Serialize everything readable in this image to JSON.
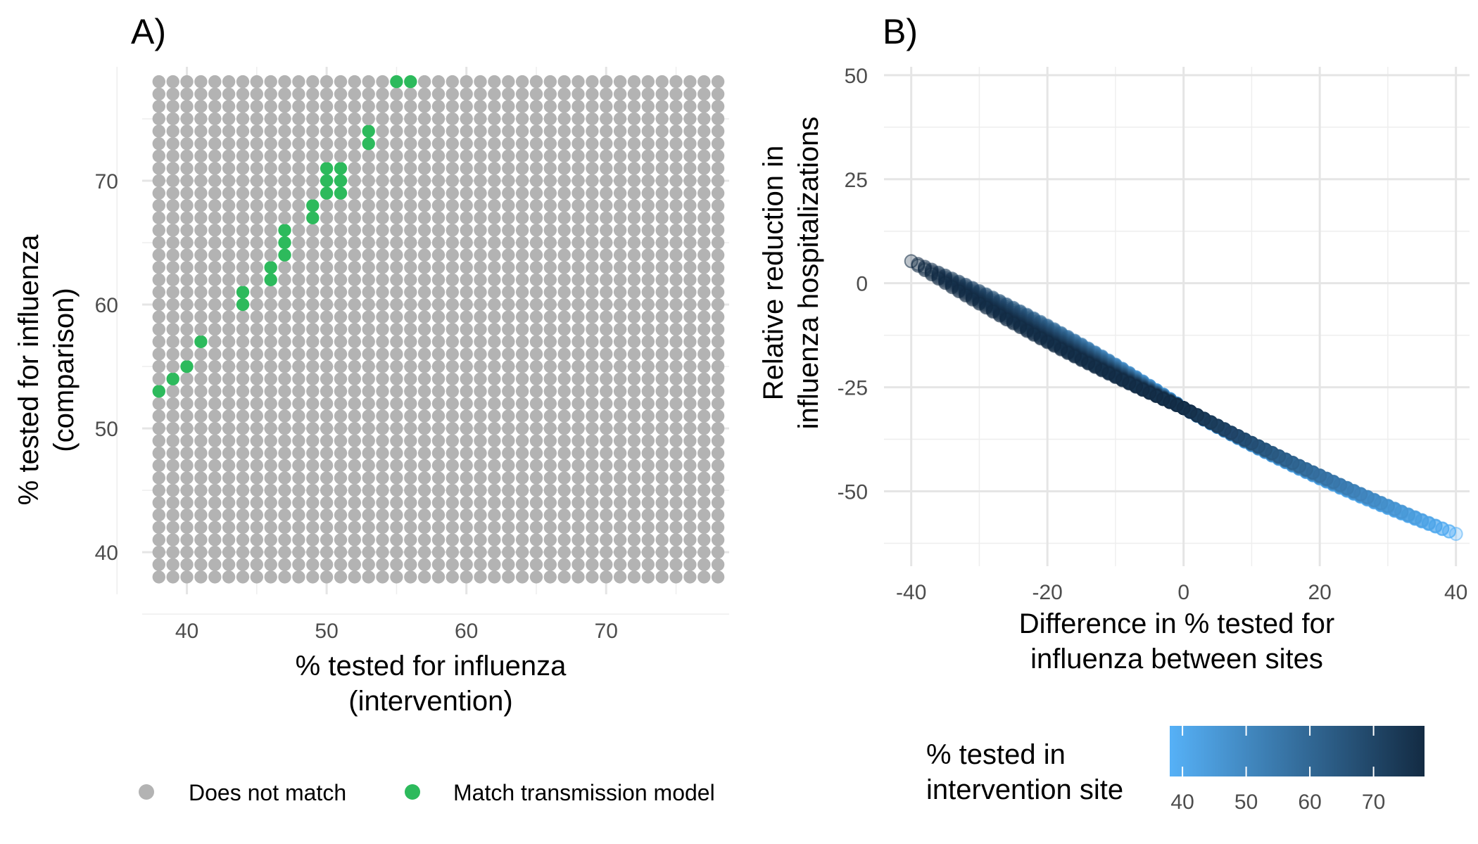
{
  "chart_data": [
    {
      "panel": "A)",
      "type": "scatter",
      "xlabel": [
        "% tested for influenza",
        "(intervention)"
      ],
      "ylabel": [
        "% tested for influenza",
        "(comparison)"
      ],
      "xlim": [
        36.8,
        78.8
      ],
      "ylim": [
        36.6,
        79.2
      ],
      "x_ticks": [
        40,
        50,
        60,
        70
      ],
      "y_ticks": [
        40,
        50,
        60,
        70
      ],
      "grid": true,
      "grid_range": {
        "x": [
          38,
          78
        ],
        "y": [
          38,
          78
        ]
      },
      "legend": {
        "position": "bottom",
        "entries": [
          {
            "label": "Does not match",
            "color": "#b3b3b3"
          },
          {
            "label": "Match transmission model",
            "color": "#2dba5c"
          }
        ]
      },
      "background_color": "#b3b3b3",
      "match_color": "#2dba5c",
      "match_points": [
        [
          38,
          53
        ],
        [
          39,
          54
        ],
        [
          40,
          55
        ],
        [
          41,
          57
        ],
        [
          44,
          60
        ],
        [
          44,
          61
        ],
        [
          46,
          62
        ],
        [
          46,
          63
        ],
        [
          47,
          64
        ],
        [
          47,
          65
        ],
        [
          47,
          66
        ],
        [
          49,
          67
        ],
        [
          49,
          68
        ],
        [
          50,
          69
        ],
        [
          50,
          70
        ],
        [
          50,
          71
        ],
        [
          51,
          69
        ],
        [
          51,
          70
        ],
        [
          51,
          71
        ],
        [
          53,
          73
        ],
        [
          53,
          74
        ],
        [
          55,
          78
        ],
        [
          56,
          78
        ]
      ],
      "nonmatch_highlight": [
        [
          54,
          77
        ]
      ]
    },
    {
      "panel": "B)",
      "type": "scatter",
      "xlabel": [
        "Difference in % tested for",
        "influenza between sites"
      ],
      "ylabel": [
        "Relative reduction in",
        "influenza hospitalizations"
      ],
      "xlim": [
        -44,
        42
      ],
      "ylim": [
        -68,
        52
      ],
      "x_ticks": [
        -40,
        -20,
        0,
        20,
        40
      ],
      "y_ticks": [
        50,
        25,
        0,
        -25,
        -50
      ],
      "y_tick_labels": [
        "50",
        "25",
        "0",
        "-25",
        "-50"
      ],
      "x_tick_labels": [
        "-40",
        "-20",
        "0",
        "20",
        "40"
      ],
      "grid": true,
      "point_range": {
        "intervention": [
          38,
          78
        ],
        "comparison": [
          38,
          78
        ]
      },
      "colorbar": {
        "title": [
          "% tested in",
          "intervention site"
        ],
        "range": [
          38,
          78
        ],
        "ticks": [
          40,
          50,
          60,
          70
        ],
        "low_color": "#56b1f7",
        "high_color": "#132b43"
      }
    }
  ]
}
